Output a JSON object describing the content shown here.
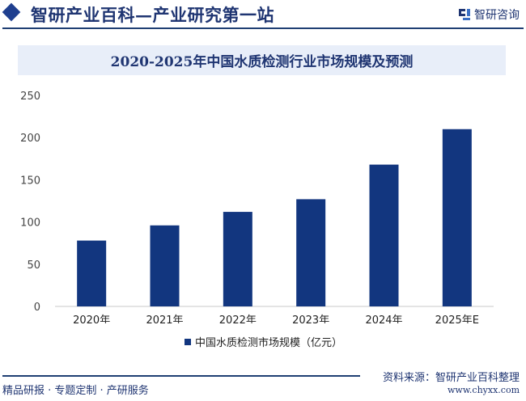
{
  "header": {
    "title": "智研产业百科—产业研究第一站",
    "brand": "智研咨询"
  },
  "footer": {
    "left": "精品研报 · 专题定制 · 产研服务",
    "source": "资料来源：智研产业百科整理",
    "url": "www.chyxx.com"
  },
  "colors": {
    "bar": "#12367f",
    "accent": "#1f3572",
    "title_band": "#e8eef9"
  },
  "chart_data": {
    "type": "bar",
    "title": "2020-2025年中国水质检测行业市场规模及预测",
    "categories": [
      "2020年",
      "2021年",
      "2022年",
      "2023年",
      "2024年",
      "2025年E"
    ],
    "series": [
      {
        "name": "中国水质检测市场规模（亿元）",
        "values": [
          78,
          96,
          112,
          127,
          168,
          210
        ]
      }
    ],
    "yticks": [
      "0",
      "50",
      "100",
      "150",
      "200",
      "250"
    ],
    "ylim": [
      0,
      250
    ],
    "grid": false,
    "legend": "bottom"
  }
}
